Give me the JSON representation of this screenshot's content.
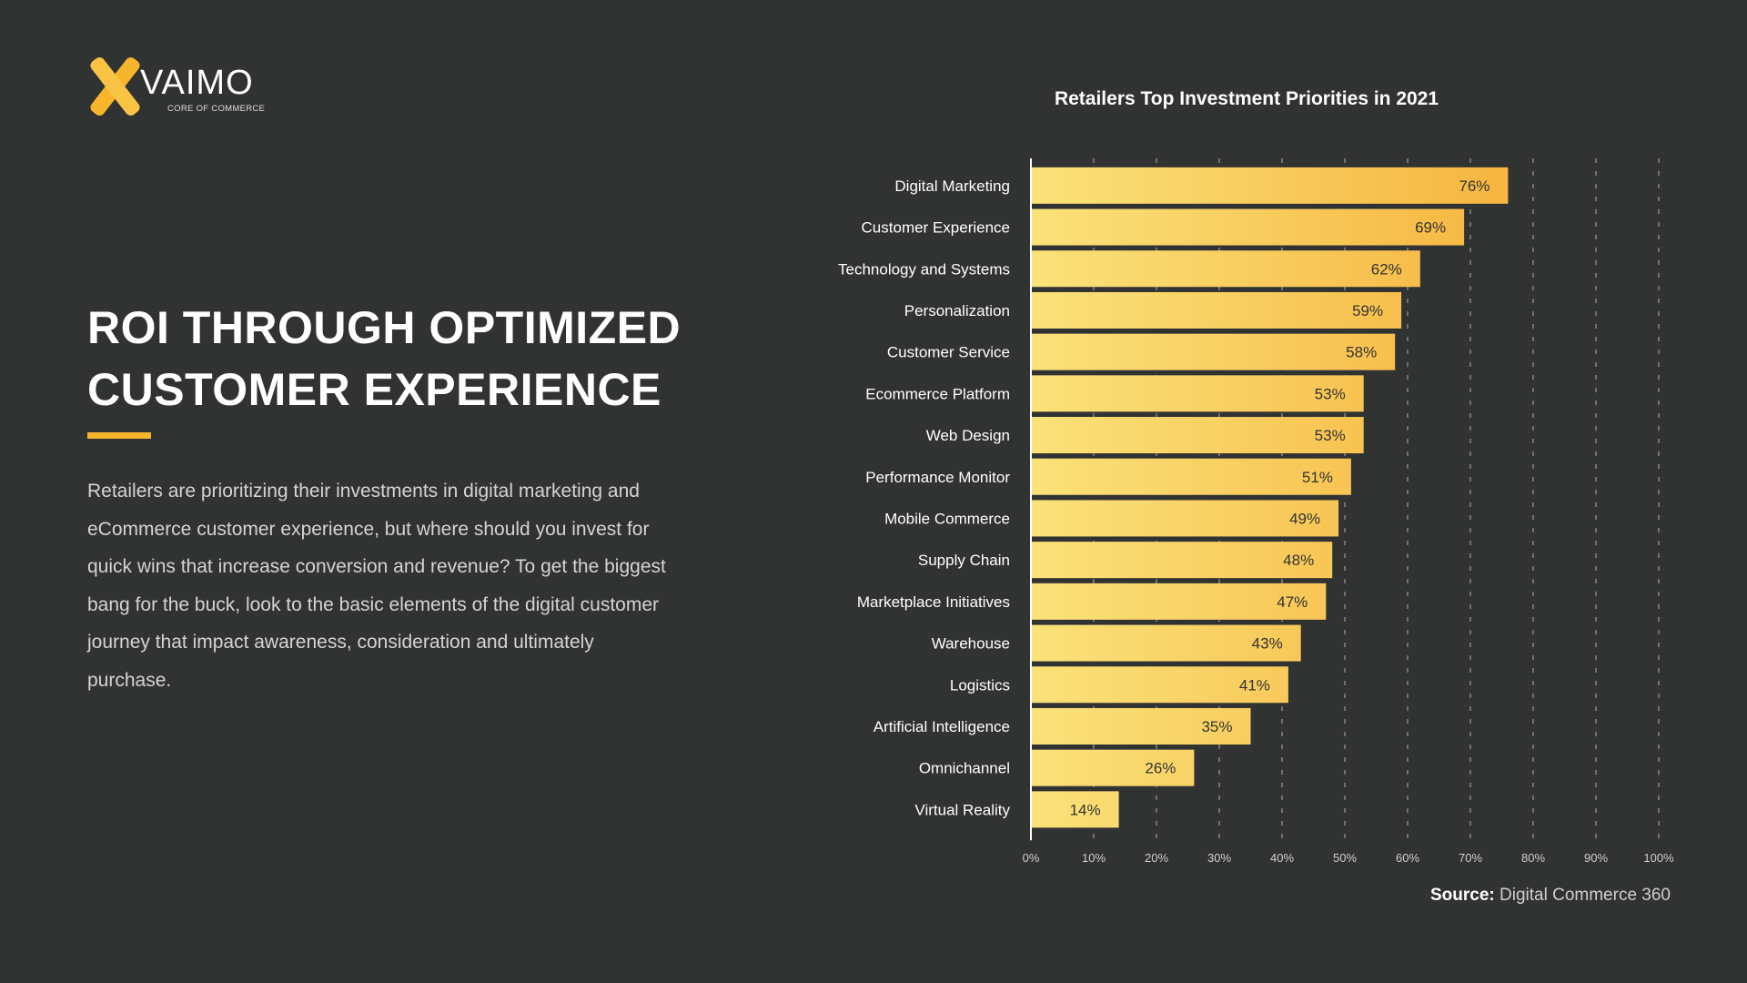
{
  "logo": {
    "name": "VAIMO",
    "tagline": "CORE OF COMMERCE"
  },
  "headline": [
    "ROI THROUGH OPTIMIZED",
    "CUSTOMER EXPERIENCE"
  ],
  "body": "Retailers are prioritizing their investments in digital marketing and eCommerce customer experience, but where should you invest for quick wins that increase conversion and revenue? To get the biggest bang for the buck, look to the basic elements of the digital customer journey that impact awareness, consideration and ultimately purchase.",
  "source": {
    "label": "Source:",
    "value": "Digital Commerce 360"
  },
  "colors": {
    "background": "#313232",
    "accent": "#f7b52c",
    "bar_start": "#fae27a",
    "bar_end": "#f6b540"
  },
  "chart_data": {
    "type": "bar",
    "orientation": "horizontal",
    "title": "Retailers Top Investment Priorities in 2021",
    "categories": [
      "Digital Marketing",
      "Customer Experience",
      "Technology and Systems",
      "Personalization",
      "Customer Service",
      "Ecommerce Platform",
      "Web Design",
      "Performance Monitor",
      "Mobile Commerce",
      "Supply Chain",
      "Marketplace Initiatives",
      "Warehouse",
      "Logistics",
      "Artificial Intelligence",
      "Omnichannel",
      "Virtual Reality"
    ],
    "values": [
      76,
      69,
      62,
      59,
      58,
      53,
      53,
      51,
      49,
      48,
      47,
      43,
      41,
      35,
      26,
      14
    ],
    "value_labels": [
      "76%",
      "69%",
      "62%",
      "59%",
      "58%",
      "53%",
      "53%",
      "51%",
      "49%",
      "48%",
      "47%",
      "43%",
      "41%",
      "35%",
      "26%",
      "14%"
    ],
    "xlim": [
      0,
      100
    ],
    "xticks": [
      "0%",
      "10%",
      "20%",
      "30%",
      "40%",
      "50%",
      "60%",
      "70%",
      "80%",
      "90%",
      "100%"
    ],
    "grid": "vertical dashed"
  }
}
